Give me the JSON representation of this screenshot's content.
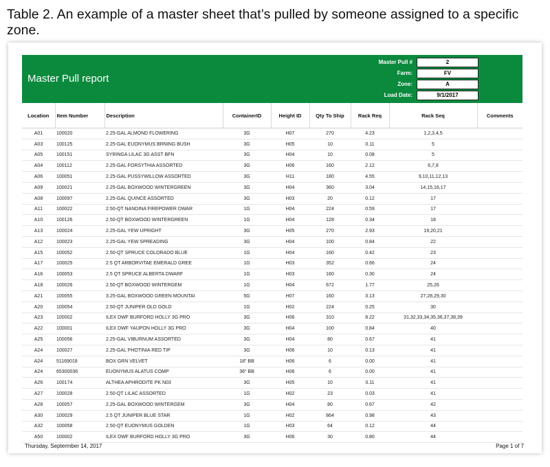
{
  "caption": "Table 2. An example of a master sheet that’s pulled by someone assigned to a specific zone.",
  "report": {
    "title": "Master Pull report",
    "meta": [
      {
        "label": "Master Pull #",
        "value": "2"
      },
      {
        "label": "Farm:",
        "value": "FV"
      },
      {
        "label": "Zone:",
        "value": "A"
      },
      {
        "label": "Load Date:",
        "value": "9/1/2017"
      }
    ],
    "brand_color": "#0b8a3e"
  },
  "table": {
    "headers": [
      "Location",
      "Item Number",
      "Description",
      "ContainerID",
      "Height ID",
      "Qty To Ship",
      "Rack Req",
      "Rack Seq",
      "Comments"
    ],
    "rows": [
      [
        "A01",
        "100020",
        "2.25-GAL ALMOND FLOWERING",
        "3G",
        "H07",
        "270",
        "4.23",
        "1,2,3,4,5",
        ""
      ],
      [
        "A03",
        "100125",
        "2.25-GAL EUONYMUS BRNING BUSH",
        "3G",
        "H05",
        "10",
        "0.11",
        "5",
        ""
      ],
      [
        "A05",
        "100151",
        "SYRINGA LILAC 3G ASST BFN",
        "3G",
        "H04",
        "10",
        "0.08",
        "5",
        ""
      ],
      [
        "A04",
        "100112",
        "2.25-GAL FORSYTHIA ASSORTED",
        "3G",
        "H06",
        "160",
        "2.12",
        "6,7,8",
        ""
      ],
      [
        "A06",
        "100051",
        "2.25-GAL PUSSYWILLOW ASSORTED",
        "3G",
        "H11",
        "180",
        "4.55",
        "9,10,11,12,13",
        ""
      ],
      [
        "A09",
        "100021",
        "2.25-GAL BOXWOOD WINTERGREEN",
        "3G",
        "H04",
        "360",
        "3.04",
        "14,15,16,17",
        ""
      ],
      [
        "A08",
        "100097",
        "2.25-GAL QUINCE ASSORTED",
        "3G",
        "H03",
        "20",
        "0.12",
        "17",
        ""
      ],
      [
        "A11",
        "100022",
        "2.50-QT NANDINA FIREPOWER DWAR",
        "1G",
        "H04",
        "224",
        "0.59",
        "17",
        ""
      ],
      [
        "A10",
        "100126",
        "2.50-QT BOXWOOD WINTERGREEN",
        "1G",
        "H04",
        "128",
        "0.34",
        "18",
        ""
      ],
      [
        "A13",
        "100024",
        "2.25-GAL YEW UPRIGHT",
        "3G",
        "H05",
        "270",
        "2.93",
        "19,20,21",
        ""
      ],
      [
        "A12",
        "100023",
        "2.25-GAL YEW SPREADING",
        "3G",
        "H04",
        "100",
        "0.84",
        "22",
        ""
      ],
      [
        "A15",
        "100052",
        "2.50-QT SPRUCE COLORADO BLUE",
        "1G",
        "H04",
        "160",
        "0.42",
        "23",
        ""
      ],
      [
        "A17",
        "100025",
        "2.5 QT ARBORVITAE EMERALD GREE",
        "1G",
        "H03",
        "352",
        "0.66",
        "24",
        ""
      ],
      [
        "A16",
        "100053",
        "2.5 QT SPRUCE ALBERTA DWARF",
        "1G",
        "H03",
        "160",
        "0.30",
        "24",
        ""
      ],
      [
        "A18",
        "100026",
        "2.50-QT BOXWOOD WINTERGEM",
        "1G",
        "H04",
        "672",
        "1.77",
        "25,26",
        ""
      ],
      [
        "A21",
        "100055",
        "3.25-GAL BOXWOOD GREEN MOUNTAI",
        "5G",
        "H07",
        "160",
        "3.13",
        "27,28,29,30",
        ""
      ],
      [
        "A20",
        "100054",
        "2.50-QT JUNIPER OLD GOLD",
        "1G",
        "H02",
        "224",
        "0.25",
        "30",
        ""
      ],
      [
        "A23",
        "100002",
        "ILEX DWF BURFORD HOLLY 3G PRO",
        "3G",
        "H06",
        "310",
        "8.22",
        "31,32,33,34,35,36,37,38,39",
        ""
      ],
      [
        "A22",
        "100001",
        "ILEX DWF YAUPON HOLLY 3G PRO",
        "3G",
        "H04",
        "100",
        "0.84",
        "40",
        ""
      ],
      [
        "A25",
        "100056",
        "2.25-GAL VIBURNUM ASSORTED",
        "3G",
        "H04",
        "80",
        "0.67",
        "41",
        ""
      ],
      [
        "A24",
        "100027",
        "2.25-GAL PHOTINIA RED TIP",
        "3G",
        "H06",
        "10",
        "0.13",
        "41",
        ""
      ],
      [
        "A24",
        "51169018",
        "BOX GRN VELVET",
        "18\" BB",
        "H06",
        "6",
        "0.00",
        "41",
        ""
      ],
      [
        "A24",
        "65300036",
        "EUONYMUS ALATUS COMP",
        "36\" BB",
        "H06",
        "6",
        "0.00",
        "41",
        ""
      ],
      [
        "A26",
        "100174",
        "ALTHEA APHRODITE PK N03",
        "3G",
        "H05",
        "10",
        "0.11",
        "41",
        ""
      ],
      [
        "A27",
        "100028",
        "2.50-QT LILAC ASSORTED",
        "1G",
        "H02",
        "23",
        "0.03",
        "41",
        ""
      ],
      [
        "A28",
        "100057",
        "2.25-GAL BOXWOOD WINTERGEM",
        "3G",
        "H04",
        "80",
        "0.67",
        "42",
        ""
      ],
      [
        "A30",
        "100029",
        "2.5 QT JUNIPER BLUE STAR",
        "1G",
        "H02",
        "864",
        "0.98",
        "43",
        ""
      ],
      [
        "A32",
        "100058",
        "2.50-QT EUONYMUS GOLDEN",
        "1G",
        "H03",
        "64",
        "0.12",
        "44",
        ""
      ],
      [
        "A50",
        "100002",
        "ILEX DWF BURFORD HOLLY 3G PRO",
        "3G",
        "H06",
        "30",
        "0.80",
        "44",
        ""
      ]
    ]
  },
  "footer": {
    "date": "Thursday, Septermber 14, 2017",
    "page": "Page 1 of 7"
  }
}
